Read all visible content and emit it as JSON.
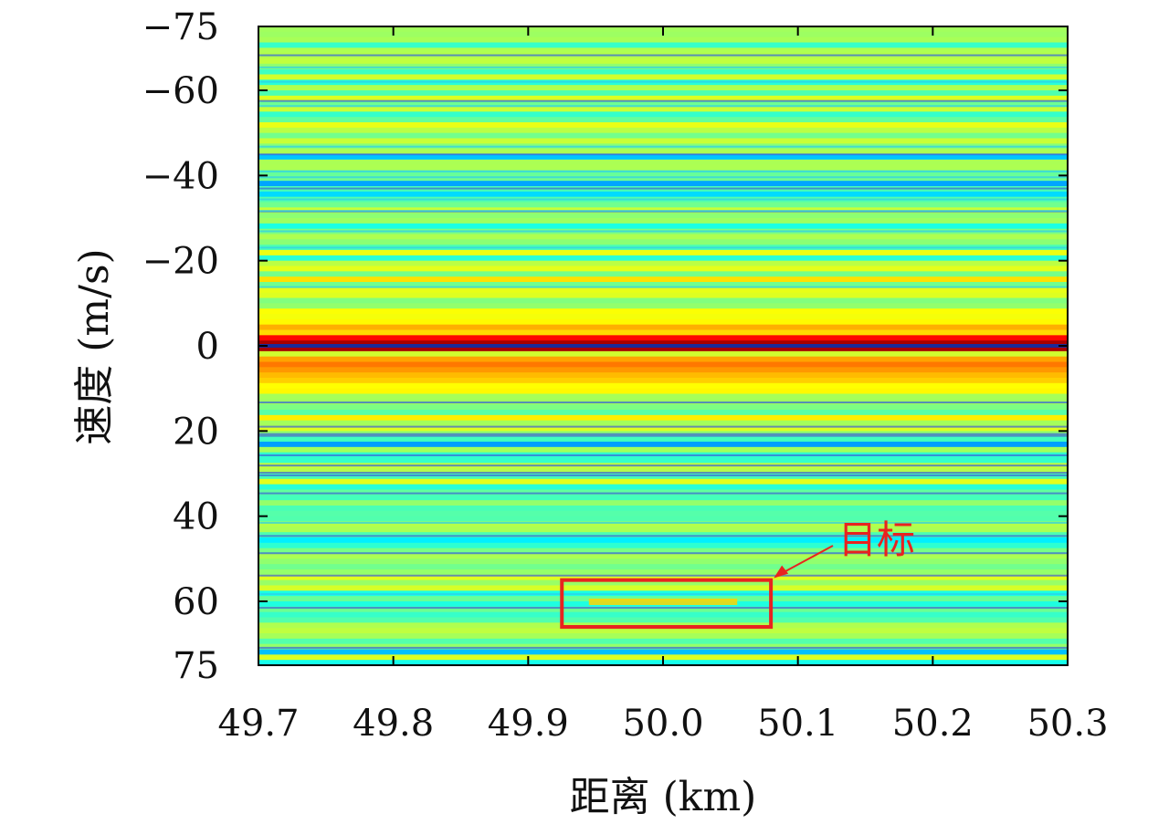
{
  "chart_data": {
    "type": "heatmap",
    "xlabel": "距离 (km)",
    "ylabel": "速度 (m/s)",
    "xlim": [
      49.7,
      50.3
    ],
    "ylim": [
      -75,
      75
    ],
    "x_ticks": [
      "49.7",
      "49.8",
      "49.9",
      "50.0",
      "50.1",
      "50.2",
      "50.3"
    ],
    "y_ticks": [
      "−75",
      "−60",
      "−40",
      "−20",
      "0",
      "20",
      "40",
      "60",
      "75"
    ],
    "y_tick_values": [
      -75,
      -60,
      -40,
      -20,
      0,
      20,
      40,
      60,
      75
    ],
    "y_direction": "down",
    "grid": false,
    "colormap": "jet",
    "description_bands": [
      {
        "v_from": -75,
        "v_to": -60,
        "level": "low"
      },
      {
        "v_from": -20,
        "v_to": -8,
        "level": "medium-high"
      },
      {
        "v_from": -8,
        "v_to": 8,
        "level": "high"
      },
      {
        "v_from": 8,
        "v_to": 20,
        "level": "medium-high"
      },
      {
        "v_from": 50,
        "v_to": 75,
        "level": "low"
      }
    ],
    "clutter_velocity": 0,
    "target": {
      "label": "目标",
      "range_km": [
        49.925,
        50.08
      ],
      "velocity_ms": [
        55,
        66
      ],
      "center_velocity_ms": 60,
      "box_color": "#e8231f"
    }
  }
}
